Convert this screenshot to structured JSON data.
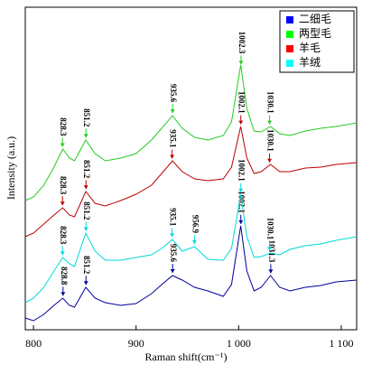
{
  "chart_data": {
    "type": "line",
    "xlabel": "Raman shift(cm⁻¹)",
    "ylabel": "Intensity (a.u.)",
    "x": [
      792,
      800,
      810,
      820,
      828.5,
      835,
      840,
      851,
      860,
      870,
      885,
      900,
      915,
      925,
      935.5,
      945,
      957,
      970,
      985,
      993,
      1002,
      1008,
      1015,
      1022,
      1031,
      1040,
      1050,
      1065,
      1080,
      1095,
      1115
    ],
    "xlim": [
      792,
      1115
    ],
    "xticks": [
      800,
      900,
      {
        "value": 1000,
        "label": "1 000"
      },
      {
        "value": 1100,
        "label": "1 100"
      }
    ],
    "ylim": [
      0,
      357
    ],
    "legend": "upper right",
    "series": [
      {
        "name": "二细毛",
        "color": "#0000ff",
        "line_color": "#000099",
        "values": [
          13,
          10,
          17,
          27,
          35,
          27,
          25,
          47,
          35,
          30,
          27,
          29,
          40,
          50,
          60,
          55,
          47,
          43,
          37,
          50,
          115,
          65,
          43,
          47,
          60,
          47,
          43,
          47,
          49,
          53,
          55
        ],
        "peaks": [
          828.8,
          851.2,
          935.6,
          1002.1,
          1031.3
        ]
      },
      {
        "name": "两型毛",
        "color": "#00ff00",
        "line_color": "#22cc22",
        "values": [
          143,
          147,
          160,
          180,
          200,
          190,
          187,
          210,
          195,
          187,
          190,
          195,
          210,
          223,
          237,
          223,
          213,
          210,
          215,
          230,
          293,
          245,
          220,
          219,
          225,
          217,
          215,
          220,
          223,
          225,
          229
        ],
        "peaks": [
          828.3,
          851.2,
          935.6,
          1002.3,
          1030.1
        ]
      },
      {
        "name": "羊毛",
        "color": "#ff0000",
        "line_color": "#bb0000",
        "values": [
          103,
          107,
          117,
          127,
          135,
          127,
          125,
          153,
          140,
          137,
          143,
          150,
          160,
          173,
          187,
          175,
          167,
          165,
          167,
          180,
          225,
          190,
          173,
          175,
          183,
          175,
          175,
          179,
          180,
          183,
          185
        ],
        "peaks": [
          828.3,
          851.2,
          935.1,
          1002.1,
          1030.1
        ]
      },
      {
        "name": "羊绒",
        "color": "#00ffff",
        "line_color": "#00d8d8",
        "values": [
          30,
          35,
          47,
          65,
          80,
          73,
          70,
          107,
          87,
          77,
          77,
          80,
          83,
          90,
          100,
          87,
          92,
          78,
          77,
          90,
          150,
          103,
          80,
          81,
          85,
          83,
          89,
          93,
          95,
          99,
          103
        ],
        "peaks": [
          828.3,
          851.2,
          935.1,
          956.9,
          1002.1,
          1030.1
        ]
      }
    ]
  }
}
